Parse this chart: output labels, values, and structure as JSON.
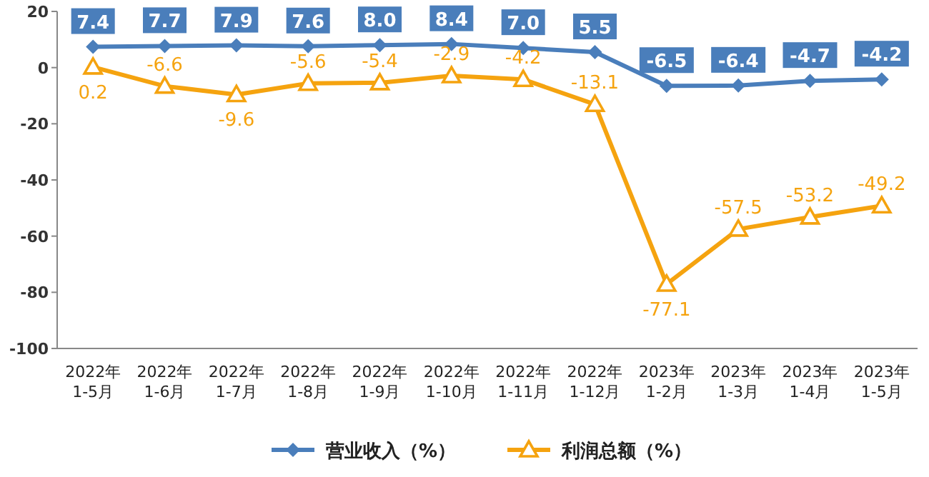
{
  "chart_data": {
    "type": "line",
    "categories": [
      "2022年\n1-5月",
      "2022年\n1-6月",
      "2022年\n1-7月",
      "2022年\n1-8月",
      "2022年\n1-9月",
      "2022年\n1-10月",
      "2022年\n1-11月",
      "2022年\n1-12月",
      "2023年\n1-2月",
      "2023年\n1-3月",
      "2023年\n1-4月",
      "2023年\n1-5月"
    ],
    "series": [
      {
        "name": "营业收入（%）",
        "color": "#4a7ebb",
        "marker": "diamond",
        "values": [
          7.4,
          7.7,
          7.9,
          7.6,
          8.0,
          8.4,
          7.0,
          5.5,
          -6.5,
          -6.4,
          -4.7,
          -4.2
        ],
        "value_labels": [
          "7.4",
          "7.7",
          "7.9",
          "7.6",
          "8.0",
          "8.4",
          "7.0",
          "5.5",
          "-6.5",
          "-6.4",
          "-4.7",
          "-4.2"
        ]
      },
      {
        "name": "利润总额（%）",
        "color": "#f5a30f",
        "marker": "triangle",
        "values": [
          0.2,
          -6.6,
          -9.6,
          -5.6,
          -5.4,
          -2.9,
          -4.2,
          -13.1,
          -77.1,
          -57.5,
          -53.2,
          -49.2
        ],
        "value_labels": [
          "0.2",
          "-6.6",
          "-9.6",
          "-5.6",
          "-5.4",
          "-2.9",
          "-4.2",
          "-13.1",
          "-77.1",
          "-57.5",
          "-53.2",
          "-49.2"
        ]
      }
    ],
    "ylim": [
      -100,
      20
    ],
    "yticks": [
      -100,
      -80,
      -60,
      -40,
      -20,
      0,
      20
    ],
    "legend": "bottom"
  }
}
